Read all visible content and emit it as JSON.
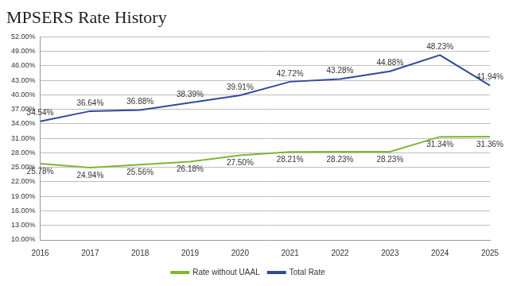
{
  "chart_data": {
    "type": "line",
    "title": "MPSERS Rate History",
    "categories": [
      "2016",
      "2017",
      "2018",
      "2019",
      "2020",
      "2021",
      "2022",
      "2023",
      "2024",
      "2025"
    ],
    "series": [
      {
        "name": "Rate without UAAL",
        "color": "#7cb82f",
        "values": [
          25.78,
          24.94,
          25.56,
          26.18,
          27.5,
          28.21,
          28.23,
          28.23,
          31.34,
          31.36
        ],
        "value_labels": [
          "25.78%",
          "24.94%",
          "25.56%",
          "26.18%",
          "27.50%",
          "28.21%",
          "28.23%",
          "28.23%",
          "31.34%",
          "31.36%"
        ]
      },
      {
        "name": "Total Rate",
        "color": "#2f4b9a",
        "values": [
          34.54,
          36.64,
          36.88,
          38.39,
          39.91,
          42.72,
          43.28,
          44.88,
          48.23,
          41.94
        ],
        "value_labels": [
          "34.54%",
          "36.64%",
          "36.88%",
          "38.39%",
          "39.91%",
          "42.72%",
          "43.28%",
          "44.88%",
          "48.23%",
          "41.94%"
        ]
      }
    ],
    "ylim": [
      10,
      52
    ],
    "yticks": [
      {
        "value": 10,
        "label": "10.00%"
      },
      {
        "value": 13,
        "label": "13.00%"
      },
      {
        "value": 16,
        "label": "16.00%"
      },
      {
        "value": 19,
        "label": "19.00%"
      },
      {
        "value": 22,
        "label": "22.00%"
      },
      {
        "value": 25,
        "label": "25.00%"
      },
      {
        "value": 28,
        "label": "28.00%"
      },
      {
        "value": 31,
        "label": "31.00%"
      },
      {
        "value": 34,
        "label": "34.00%"
      },
      {
        "value": 37,
        "label": "37.00%"
      },
      {
        "value": 40,
        "label": "40.00%"
      },
      {
        "value": 43,
        "label": "43.00%"
      },
      {
        "value": 46,
        "label": "46.00%"
      },
      {
        "value": 49,
        "label": "49.00%"
      },
      {
        "value": 52,
        "label": "52.00%"
      }
    ],
    "grid": true,
    "legend": "bottom",
    "data_labels": true
  }
}
